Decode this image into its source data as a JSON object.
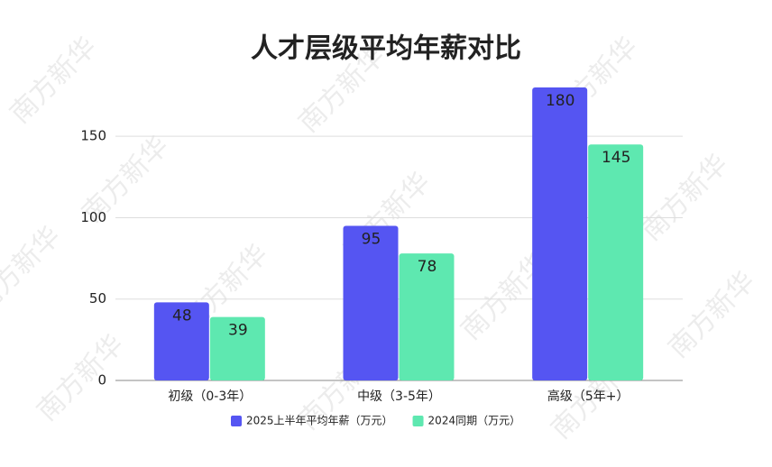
{
  "chart_data": {
    "type": "bar",
    "title": "人才层级平均年薪对比",
    "watermark": "南方新华",
    "categories": [
      "初级（0-3年）",
      "中级（3-5年）",
      "高级（5年+）"
    ],
    "series": [
      {
        "name": "2025上半年平均年薪（万元）",
        "color": "#5555f2",
        "values": [
          48,
          95,
          180
        ]
      },
      {
        "name": "2024同期（万元）",
        "color": "#5ee8b0",
        "values": [
          39,
          78,
          145
        ]
      }
    ],
    "ylim": [
      0,
      180
    ],
    "yticks": [
      0,
      50,
      100,
      150
    ],
    "grid": true,
    "legend": "bottom"
  }
}
